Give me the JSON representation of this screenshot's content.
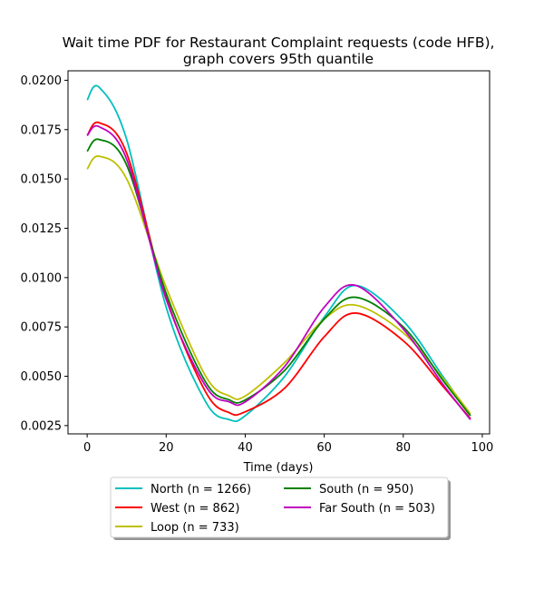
{
  "chart_data": {
    "type": "line",
    "title_lines": [
      "Wait time PDF for Restaurant Complaint  requests (code HFB),",
      "graph covers 95th quantile"
    ],
    "xlabel": "Time (days)",
    "ylabel": "",
    "xlim": [
      -4.85,
      101.85
    ],
    "ylim": [
      0.00208,
      0.02048
    ],
    "x_ticks": [
      "0",
      "20",
      "40",
      "60",
      "80",
      "100"
    ],
    "y_ticks": [
      "0.0025",
      "0.0050",
      "0.0075",
      "0.0100",
      "0.0125",
      "0.0150",
      "0.0175",
      "0.0200"
    ],
    "grid": false,
    "legend_position": "below-plot",
    "x": [
      0,
      3,
      10,
      20,
      30,
      36,
      40,
      50,
      60,
      68,
      80,
      90,
      97
    ],
    "series": [
      {
        "name": "North (n = 1266)",
        "color": "#00bfbf",
        "values": [
          0.019,
          0.01965,
          0.017,
          0.0085,
          0.0037,
          0.0028,
          0.003,
          0.005,
          0.008,
          0.0096,
          0.0078,
          0.005,
          0.003
        ]
      },
      {
        "name": "West (n = 862)",
        "color": "#ff0000",
        "values": [
          0.0172,
          0.01785,
          0.0163,
          0.009,
          0.0042,
          0.00315,
          0.0032,
          0.0044,
          0.007,
          0.0082,
          0.0068,
          0.0045,
          0.00285
        ]
      },
      {
        "name": "Loop (n = 733)",
        "color": "#bfbf00",
        "values": [
          0.0155,
          0.01615,
          0.015,
          0.0095,
          0.005,
          0.004,
          0.004,
          0.0057,
          0.0079,
          0.0086,
          0.0072,
          0.0049,
          0.0031
        ]
      },
      {
        "name": "South (n = 950)",
        "color": "#008000",
        "values": [
          0.0164,
          0.017,
          0.0157,
          0.0092,
          0.0047,
          0.0038,
          0.0038,
          0.0053,
          0.0079,
          0.009,
          0.0075,
          0.0048,
          0.003
        ]
      },
      {
        "name": "Far South (n = 503)",
        "color": "#bf00bf",
        "values": [
          0.0172,
          0.01765,
          0.016,
          0.0089,
          0.0045,
          0.0037,
          0.0037,
          0.0055,
          0.0085,
          0.0096,
          0.0074,
          0.0046,
          0.0028
        ]
      }
    ],
    "legend": {
      "columns": [
        [
          "North (n = 1266)",
          "West (n = 862)",
          "Loop (n = 733)"
        ],
        [
          "South (n = 950)",
          "Far South (n = 503)"
        ]
      ]
    }
  }
}
